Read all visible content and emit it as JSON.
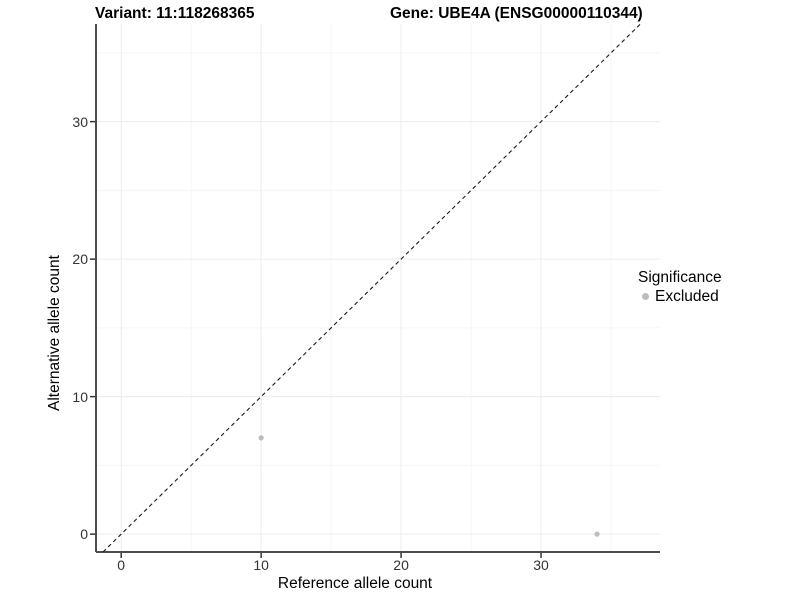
{
  "header": {
    "variant_title": "Variant: 11:118268365",
    "gene_title": "Gene: UBE4A (ENSG00000110344)"
  },
  "chart_data": {
    "type": "scatter",
    "title": "Variant: 11:118268365 — Gene: UBE4A (ENSG00000110344)",
    "xlabel": "Reference allele count",
    "ylabel": "Alternative allele count",
    "x_ticks": [
      0,
      10,
      20,
      30
    ],
    "y_ticks": [
      0,
      10,
      20,
      30
    ],
    "x_minor_ticks": [
      5,
      15,
      25,
      35
    ],
    "y_minor_ticks": [
      5,
      15,
      25,
      35
    ],
    "xlim": [
      -1.8,
      38.5
    ],
    "ylim": [
      -1.3,
      37.1
    ],
    "grid": "major+minor",
    "legend_position": "right",
    "identity_line": {
      "equation": "y = x",
      "style": "dashed",
      "color": "#1a1a1a"
    },
    "series": [
      {
        "name": "Excluded",
        "color": "#bdbdbd",
        "points": [
          {
            "x": 10,
            "y": 7
          },
          {
            "x": 34,
            "y": 0
          }
        ]
      }
    ],
    "legend": {
      "title": "Significance",
      "items": [
        {
          "label": "Excluded",
          "color": "#bdbdbd"
        }
      ]
    }
  },
  "colors": {
    "background": "#ffffff",
    "axis_line": "#4d4d4d",
    "tick_mark": "#333333",
    "tick_label": "#333333",
    "grid_major": "#ececec",
    "grid_minor": "#f5f5f5",
    "point": "#bdbdbd",
    "text": "#000000"
  }
}
